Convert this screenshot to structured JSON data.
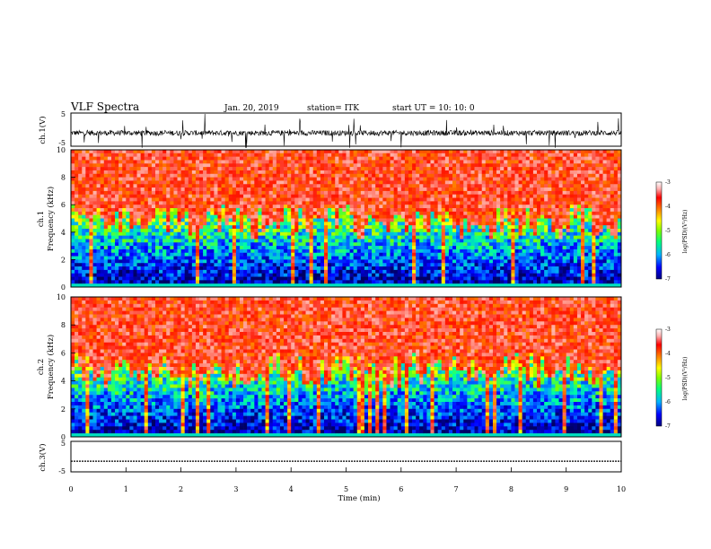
{
  "header": {
    "title": "VLF Spectra",
    "date": "Jan. 20, 2019",
    "station": "station= ITK",
    "start_ut": "start  UT =   10: 10: 0"
  },
  "colors": {
    "spectrogram_low": "#00004a",
    "spectrogram_high": "#ff0000",
    "colorbar_stops": [
      "#000080",
      "#0000ff",
      "#00c0ff",
      "#00ff80",
      "#80ff00",
      "#ffff00",
      "#ff8000",
      "#ff0000",
      "#ffc0c0",
      "#ffffff"
    ]
  },
  "chart_data": [
    {
      "type": "line",
      "ylabel": "ch.1(V)",
      "ylim": [
        -5,
        5
      ],
      "yticks": [
        "5",
        "-5"
      ],
      "xlim": [
        0,
        10
      ],
      "description_level": "noisy waveform near -1 V with impulsive spikes"
    },
    {
      "type": "heatmap",
      "ylabel_line1": "ch.1",
      "ylabel_line2": "Frequency  (kHz)",
      "ylim": [
        0,
        10
      ],
      "yticks": [
        "0",
        "2",
        "4",
        "6",
        "8",
        "10"
      ],
      "xlim": [
        0,
        10
      ],
      "colorbar": {
        "label": "log(PSD)(V²/Hz)",
        "range": [
          -7,
          -3
        ],
        "ticks": [
          "-3",
          "-4",
          "-5",
          "-6",
          "-7"
        ]
      }
    },
    {
      "type": "heatmap",
      "ylabel_line1": "ch.2",
      "ylabel_line2": "Frequency  (kHz)",
      "ylim": [
        0,
        10
      ],
      "yticks": [
        "0",
        "2",
        "4",
        "6",
        "8",
        "10"
      ],
      "xlim": [
        0,
        10
      ],
      "colorbar": {
        "label": "log(PSD)(V²/Hz)",
        "range": [
          -7,
          -3
        ],
        "ticks": [
          "-3",
          "-4",
          "-5",
          "-6",
          "-7"
        ]
      }
    },
    {
      "type": "line",
      "ylabel": "ch.3(V)",
      "ylim": [
        -5,
        5
      ],
      "yticks": [
        "5",
        "-5"
      ],
      "xlim": [
        0,
        10
      ],
      "xlabel": "Time  (min)",
      "xticks": [
        "0",
        "1",
        "2",
        "3",
        "4",
        "5",
        "6",
        "7",
        "8",
        "9",
        "10"
      ],
      "level_volts": -1.5
    }
  ]
}
